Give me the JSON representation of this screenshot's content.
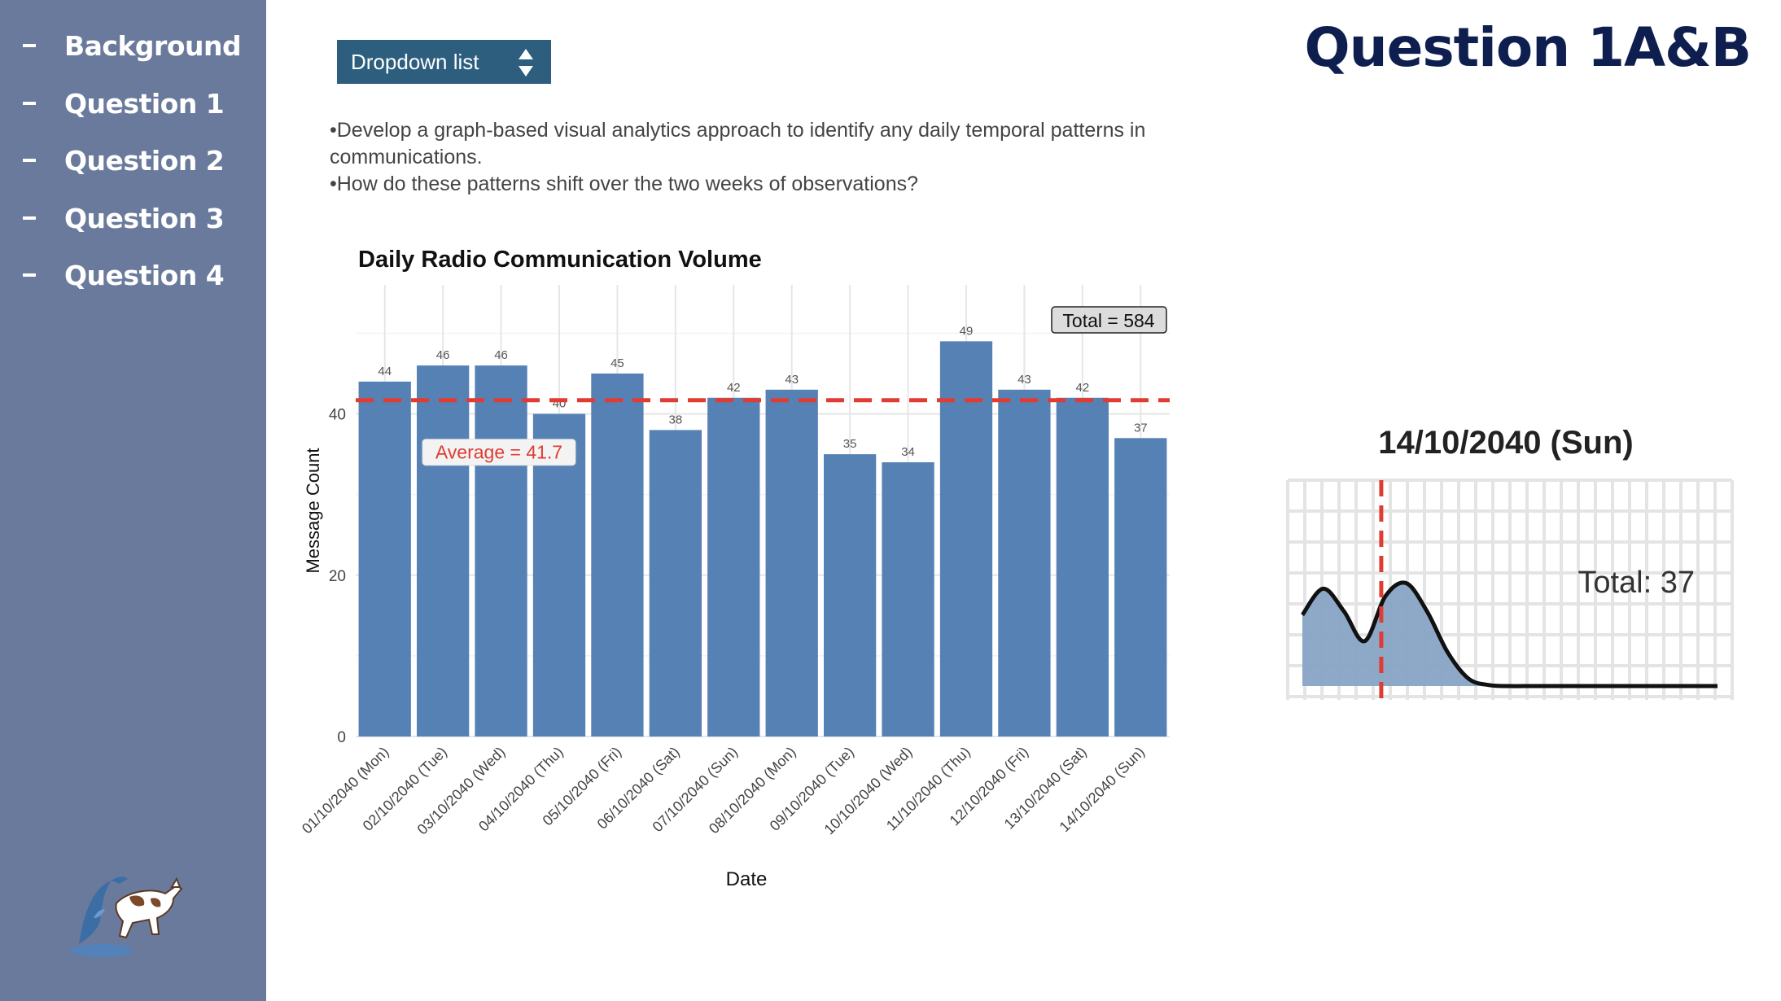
{
  "sidebar": {
    "items": [
      {
        "label": "Background"
      },
      {
        "label": "Question 1"
      },
      {
        "label": "Question 2"
      },
      {
        "label": "Question 3"
      },
      {
        "label": "Question 4"
      }
    ]
  },
  "header": {
    "dropdown_label": "Dropdown list",
    "page_title": "Question 1A&B"
  },
  "description": {
    "line1": "•Develop a graph-based visual analytics approach to identify any daily temporal patterns in communications.",
    "line2": "•How do these patterns shift over the two weeks of observations?"
  },
  "colors": {
    "sidebar_bg": "#6a7a9c",
    "dropdown_bg": "#2d5e7e",
    "title": "#0e1f4f",
    "bar": "#5681b4",
    "average_line": "#e03c31",
    "density_fill": "#88a3c5"
  },
  "chart_data": [
    {
      "type": "bar",
      "title": "Daily Radio Communication Volume",
      "xlabel": "Date",
      "ylabel": "Message Count",
      "ylim": [
        0,
        56
      ],
      "yticks": [
        0,
        20,
        40
      ],
      "grid": true,
      "categories": [
        "01/10/2040 (Mon)",
        "02/10/2040 (Tue)",
        "03/10/2040 (Wed)",
        "04/10/2040 (Thu)",
        "05/10/2040 (Fri)",
        "06/10/2040 (Sat)",
        "07/10/2040 (Sun)",
        "08/10/2040 (Mon)",
        "09/10/2040 (Tue)",
        "10/10/2040 (Wed)",
        "11/10/2040 (Thu)",
        "12/10/2040 (Fri)",
        "13/10/2040 (Sat)",
        "14/10/2040 (Sun)"
      ],
      "values": [
        44,
        46,
        46,
        40,
        45,
        38,
        42,
        43,
        35,
        34,
        49,
        43,
        42,
        37
      ],
      "average": 41.7,
      "average_label": "Average = 41.7",
      "total_label": "Total = 584"
    },
    {
      "type": "area",
      "title": "14/10/2040 (Sun)",
      "annotation": "Total: 37",
      "x": [
        0,
        1,
        2,
        3,
        4,
        5,
        6,
        7,
        8,
        9,
        10,
        11,
        12,
        13,
        14,
        15,
        16,
        17,
        18,
        19,
        20
      ],
      "y": [
        0.38,
        0.52,
        0.4,
        0.24,
        0.48,
        0.55,
        0.4,
        0.18,
        0.04,
        0.005,
        0,
        0,
        0,
        0,
        0,
        0,
        0,
        0,
        0,
        0,
        0
      ],
      "marker_x": 3.8
    }
  ]
}
